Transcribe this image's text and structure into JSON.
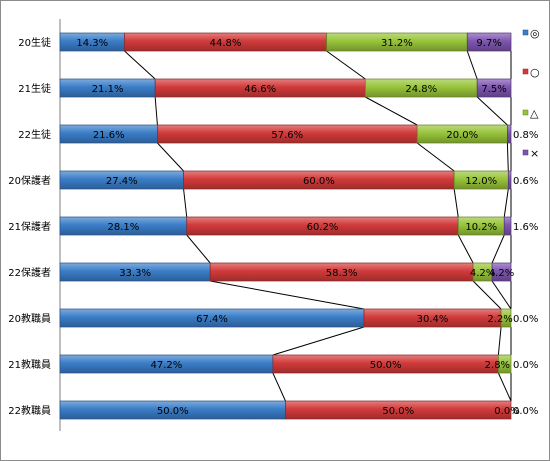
{
  "chart_data": {
    "type": "bar",
    "stacked": true,
    "orientation": "horizontal",
    "percent_stacked": true,
    "categories": [
      "20生徒",
      "21生徒",
      "22生徒",
      "20保護者",
      "21保護者",
      "22保護者",
      "20教職員",
      "21教職員",
      "22教職員"
    ],
    "series": [
      {
        "name": "◎",
        "color": "#3a7dc8",
        "values": [
          14.3,
          21.1,
          21.6,
          27.4,
          28.1,
          33.3,
          67.4,
          47.2,
          50.0
        ],
        "labels": [
          "14.3%",
          "21.1%",
          "21.6%",
          "27.4%",
          "28.1%",
          "33.3%",
          "67.4%",
          "47.2%",
          "50.0%"
        ]
      },
      {
        "name": "○",
        "color": "#d23a3a",
        "values": [
          44.8,
          46.6,
          57.6,
          60.0,
          60.2,
          58.3,
          30.4,
          50.0,
          50.0
        ],
        "labels": [
          "44.8%",
          "46.6%",
          "57.6%",
          "60.0%",
          "60.2%",
          "58.3%",
          "30.4%",
          "50.0%",
          "50.0%"
        ]
      },
      {
        "name": "△",
        "color": "#98c43a",
        "values": [
          31.2,
          24.8,
          20.0,
          12.0,
          10.2,
          4.2,
          2.2,
          2.8,
          0.0
        ],
        "labels": [
          "31.2%",
          "24.8%",
          "20.0%",
          "12.0%",
          "10.2%",
          "4.2%",
          "2.2%",
          "2.8%",
          "0.0%"
        ]
      },
      {
        "name": "×",
        "color": "#7e55b0",
        "values": [
          9.7,
          7.5,
          0.8,
          0.6,
          1.6,
          4.2,
          0.0,
          0.0,
          0.0
        ],
        "labels": [
          "9.7%",
          "7.5%",
          "0.8%",
          "0.6%",
          "1.6%",
          "4.2%",
          "0.0%",
          "0.0%",
          "0.0%"
        ]
      }
    ],
    "series_lines": true,
    "legend": "right",
    "grid": false
  }
}
